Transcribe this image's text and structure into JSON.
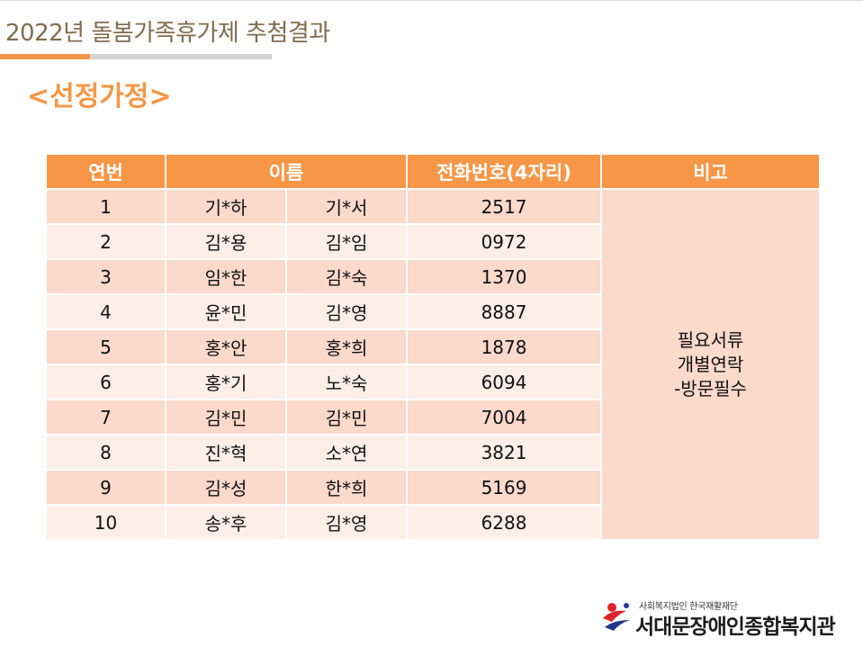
{
  "header": {
    "title": "2022년 돌봄가족휴가제 추첨결과",
    "subtitle": "<선정가정>"
  },
  "table": {
    "columns": [
      "연번",
      "이름",
      "전화번호(4자리)",
      "비고"
    ],
    "rows": [
      {
        "no": "1",
        "name1": "기*하",
        "name2": "기*서",
        "phone": "2517"
      },
      {
        "no": "2",
        "name1": "김*용",
        "name2": "김*임",
        "phone": "0972"
      },
      {
        "no": "3",
        "name1": "임*한",
        "name2": "김*숙",
        "phone": "1370"
      },
      {
        "no": "4",
        "name1": "윤*민",
        "name2": "김*영",
        "phone": "8887"
      },
      {
        "no": "5",
        "name1": "홍*안",
        "name2": "홍*희",
        "phone": "1878"
      },
      {
        "no": "6",
        "name1": "홍*기",
        "name2": "노*숙",
        "phone": "6094"
      },
      {
        "no": "7",
        "name1": "김*민",
        "name2": "김*민",
        "phone": "7004"
      },
      {
        "no": "8",
        "name1": "진*혁",
        "name2": "소*연",
        "phone": "3821"
      },
      {
        "no": "9",
        "name1": "김*성",
        "name2": "한*희",
        "phone": "5169"
      },
      {
        "no": "10",
        "name1": "송*후",
        "name2": "김*영",
        "phone": "6288"
      }
    ],
    "note_lines": [
      "필요서류",
      "개별연락",
      "-방문필수"
    ]
  },
  "logo": {
    "small_text": "사회복지법인 한국재활재단",
    "main_text": "서대문장애인종합복지관",
    "icon": "organization-logo-icon"
  },
  "colors": {
    "accent": "#f79646",
    "header_text": "#7f6c4e",
    "row_odd": "#fbd9cb",
    "row_even": "#fdeee8"
  }
}
